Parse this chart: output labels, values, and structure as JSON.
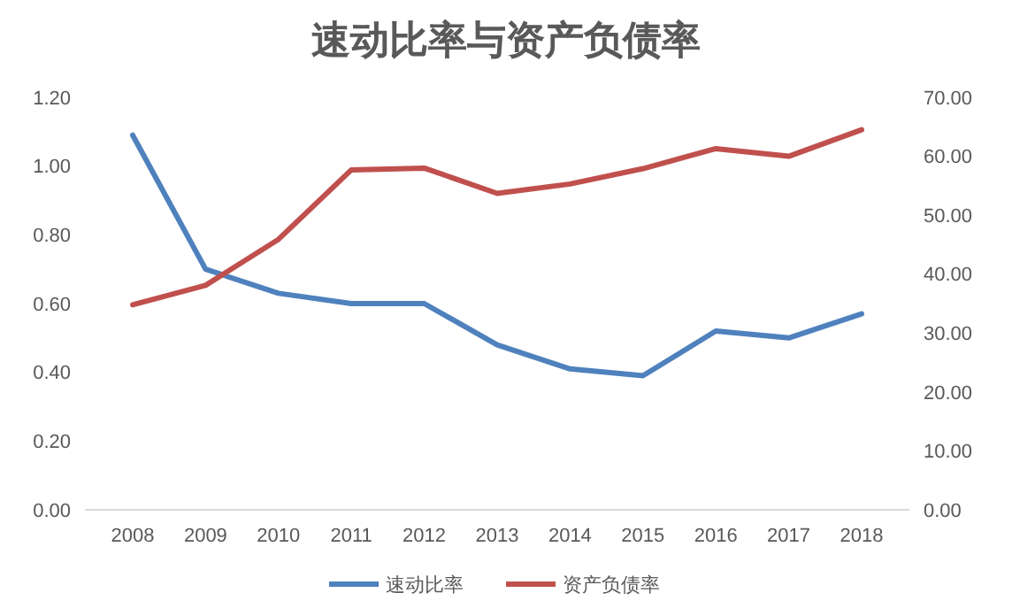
{
  "chart_data": {
    "type": "line",
    "title": "速动比率与资产负债率",
    "categories": [
      "2008",
      "2009",
      "2010",
      "2011",
      "2012",
      "2013",
      "2014",
      "2015",
      "2016",
      "2017",
      "2018"
    ],
    "series": [
      {
        "name": "速动比率",
        "color": "#4f81bd",
        "values": [
          1.09,
          0.7,
          0.63,
          0.6,
          0.6,
          0.48,
          0.41,
          0.39,
          0.52,
          0.5,
          0.57
        ]
      },
      {
        "name": "资产负债率",
        "color": "#c0504d",
        "axis": "y2",
        "values": [
          34.8,
          38.1,
          45.9,
          57.7,
          58.0,
          53.7,
          55.3,
          57.9,
          61.3,
          60.0,
          64.5
        ]
      }
    ],
    "ylim": [
      0,
      1.2
    ],
    "yticks": [
      {
        "value": 0,
        "label": "0.00"
      },
      {
        "value": 0.2,
        "label": "0.20"
      },
      {
        "value": 0.4,
        "label": "0.40"
      },
      {
        "value": 0.6,
        "label": "0.60"
      },
      {
        "value": 0.8,
        "label": "0.80"
      },
      {
        "value": 1,
        "label": "1.00"
      },
      {
        "value": 1.2,
        "label": "1.20"
      }
    ],
    "y2lim": [
      0,
      70
    ],
    "y2ticks": [
      {
        "value": 0,
        "label": "0.00"
      },
      {
        "value": 10,
        "label": "10.00"
      },
      {
        "value": 20,
        "label": "20.00"
      },
      {
        "value": 30,
        "label": "30.00"
      },
      {
        "value": 40,
        "label": "40.00"
      },
      {
        "value": 50,
        "label": "50.00"
      },
      {
        "value": 60,
        "label": "60.00"
      },
      {
        "value": 70,
        "label": "70.00"
      }
    ],
    "grid": false,
    "legend": "bottom",
    "marker": "none",
    "line_style": "solid"
  }
}
